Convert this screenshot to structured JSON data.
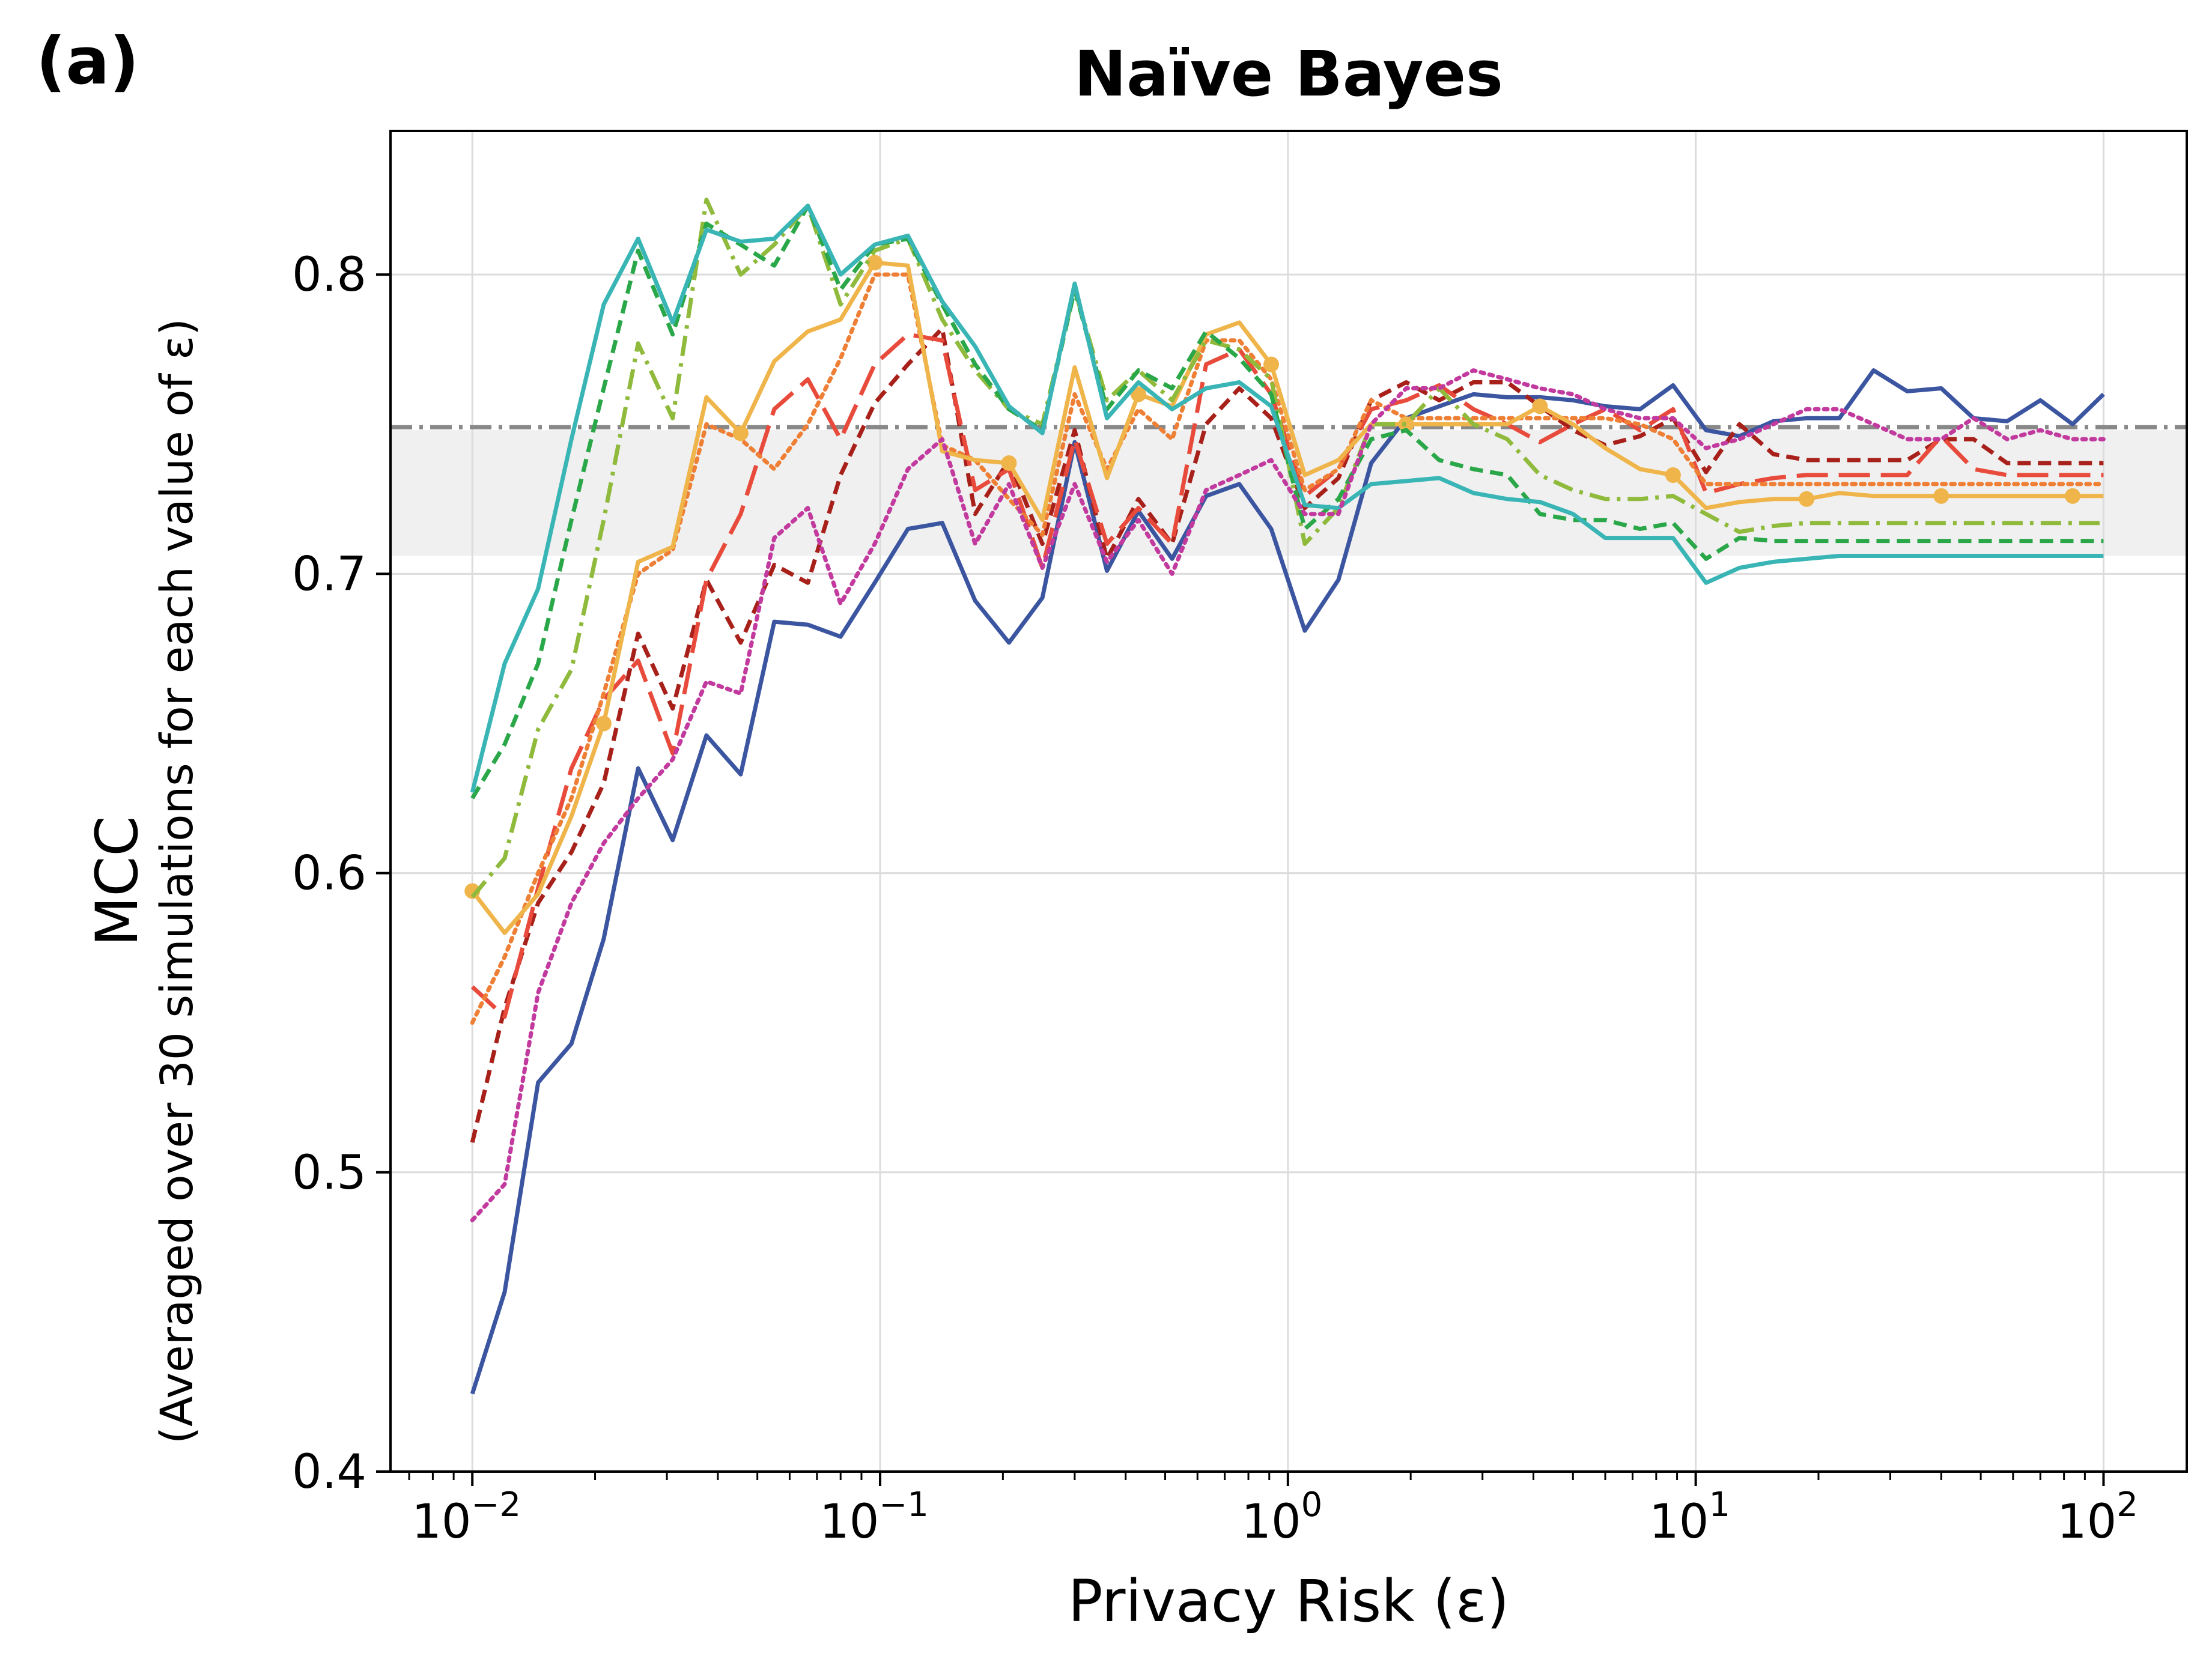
{
  "panel_label": "(a)",
  "chart_data": {
    "type": "line",
    "title": "Naïve Bayes",
    "xlabel": "Privacy Risk (ε)",
    "ylabel": "MCC",
    "ylabel_sub": "(Averaged over 30 simulations for each value of ε)",
    "xscale": "log",
    "xlim": [
      0.0063,
      160
    ],
    "ylim": [
      0.4,
      0.848
    ],
    "xticks": [
      {
        "value": 0.01,
        "base": "10",
        "exp": "−2"
      },
      {
        "value": 0.1,
        "base": "10",
        "exp": "−1"
      },
      {
        "value": 1,
        "base": "10",
        "exp": "0"
      },
      {
        "value": 10,
        "base": "10",
        "exp": "1"
      },
      {
        "value": 100,
        "base": "10",
        "exp": "2"
      }
    ],
    "yticks": [
      {
        "value": 0.4,
        "label": "0.4"
      },
      {
        "value": 0.5,
        "label": "0.5"
      },
      {
        "value": 0.6,
        "label": "0.6"
      },
      {
        "value": 0.7,
        "label": "0.7"
      },
      {
        "value": 0.8,
        "label": "0.8"
      }
    ],
    "grid": true,
    "reference_line": {
      "y": 0.749,
      "color": "#888888",
      "style": "dashdot"
    },
    "reference_band": {
      "y0": 0.706,
      "y1": 0.748,
      "color": "#f0f0f0"
    },
    "series": [
      {
        "color": "#3b55a0",
        "style": "solid",
        "x": [
          0.01,
          0.012,
          0.0145,
          0.0175,
          0.021,
          0.0255,
          0.031,
          0.0375,
          0.0455,
          0.055,
          0.0665,
          0.08,
          0.097,
          0.117,
          0.142,
          0.171,
          0.207,
          0.25,
          0.3,
          0.36,
          0.43,
          0.52,
          0.63,
          0.76,
          0.91,
          1.1,
          1.33,
          1.6,
          1.95,
          2.35,
          2.85,
          3.45,
          4.15,
          5.0,
          6.0,
          7.3,
          8.8,
          10.6,
          12.8,
          15.5,
          18.7,
          22.5,
          27.3,
          33,
          40,
          48,
          58,
          70,
          84,
          100
        ],
        "y": [
          0.426,
          0.46,
          0.53,
          0.543,
          0.578,
          0.635,
          0.611,
          0.646,
          0.633,
          0.684,
          0.683,
          0.679,
          0.697,
          0.715,
          0.717,
          0.691,
          0.677,
          0.692,
          0.744,
          0.701,
          0.721,
          0.705,
          0.726,
          0.73,
          0.715,
          0.681,
          0.698,
          0.737,
          0.752,
          0.756,
          0.76,
          0.759,
          0.759,
          0.758,
          0.756,
          0.755,
          0.763,
          0.748,
          0.746,
          0.751,
          0.752,
          0.752,
          0.768,
          0.761,
          0.762,
          0.752,
          0.751,
          0.758,
          0.75,
          0.76
        ]
      },
      {
        "color": "#a8201a",
        "style": "dashed",
        "x": [
          0.01,
          0.012,
          0.0145,
          0.0175,
          0.021,
          0.0255,
          0.031,
          0.0375,
          0.0455,
          0.055,
          0.0665,
          0.08,
          0.097,
          0.117,
          0.142,
          0.171,
          0.207,
          0.25,
          0.3,
          0.36,
          0.43,
          0.52,
          0.63,
          0.76,
          0.91,
          1.1,
          1.33,
          1.6,
          1.95,
          2.35,
          2.85,
          3.45,
          4.15,
          5.0,
          6.0,
          7.3,
          8.8,
          10.6,
          12.8,
          15.5,
          18.7,
          22.5,
          27.3,
          33,
          40,
          48,
          58,
          70,
          84,
          100
        ],
        "y": [
          0.51,
          0.555,
          0.59,
          0.607,
          0.63,
          0.68,
          0.655,
          0.698,
          0.677,
          0.703,
          0.697,
          0.733,
          0.757,
          0.77,
          0.782,
          0.72,
          0.738,
          0.71,
          0.748,
          0.705,
          0.725,
          0.71,
          0.75,
          0.762,
          0.752,
          0.722,
          0.732,
          0.758,
          0.764,
          0.758,
          0.764,
          0.764,
          0.756,
          0.748,
          0.743,
          0.746,
          0.752,
          0.734,
          0.75,
          0.74,
          0.738,
          0.738,
          0.738,
          0.738,
          0.745,
          0.745,
          0.737,
          0.737,
          0.737,
          0.737
        ]
      },
      {
        "color": "#e84b3c",
        "style": "longdash",
        "x": [
          0.01,
          0.012,
          0.0145,
          0.0175,
          0.021,
          0.0255,
          0.031,
          0.0375,
          0.0455,
          0.055,
          0.0665,
          0.08,
          0.097,
          0.117,
          0.142,
          0.171,
          0.207,
          0.25,
          0.3,
          0.36,
          0.43,
          0.52,
          0.63,
          0.76,
          0.91,
          1.1,
          1.33,
          1.6,
          1.95,
          2.35,
          2.85,
          3.45,
          4.15,
          5.0,
          6.0,
          7.3,
          8.8,
          10.6,
          12.8,
          15.5,
          18.7,
          22.5,
          27.3,
          33,
          40,
          48,
          58,
          70,
          84,
          100
        ],
        "y": [
          0.562,
          0.552,
          0.595,
          0.635,
          0.658,
          0.671,
          0.64,
          0.698,
          0.72,
          0.755,
          0.765,
          0.745,
          0.77,
          0.78,
          0.778,
          0.728,
          0.735,
          0.702,
          0.745,
          0.71,
          0.722,
          0.71,
          0.77,
          0.775,
          0.76,
          0.726,
          0.735,
          0.755,
          0.758,
          0.763,
          0.755,
          0.75,
          0.744,
          0.75,
          0.755,
          0.748,
          0.755,
          0.727,
          0.73,
          0.732,
          0.733,
          0.733,
          0.733,
          0.733,
          0.746,
          0.735,
          0.733,
          0.733,
          0.733,
          0.733
        ]
      },
      {
        "color": "#ee7f34",
        "style": "dotted",
        "x": [
          0.01,
          0.012,
          0.0145,
          0.0175,
          0.021,
          0.0255,
          0.031,
          0.0375,
          0.0455,
          0.055,
          0.0665,
          0.08,
          0.097,
          0.117,
          0.142,
          0.171,
          0.207,
          0.25,
          0.3,
          0.36,
          0.43,
          0.52,
          0.63,
          0.76,
          0.91,
          1.1,
          1.33,
          1.6,
          1.95,
          2.35,
          2.85,
          3.45,
          4.15,
          5.0,
          6.0,
          7.3,
          8.8,
          10.6,
          12.8,
          15.5,
          18.7,
          22.5,
          27.3,
          33,
          40,
          48,
          58,
          70,
          84,
          100
        ],
        "y": [
          0.55,
          0.572,
          0.6,
          0.625,
          0.66,
          0.7,
          0.708,
          0.75,
          0.745,
          0.735,
          0.75,
          0.772,
          0.8,
          0.8,
          0.743,
          0.738,
          0.725,
          0.713,
          0.76,
          0.735,
          0.755,
          0.745,
          0.778,
          0.778,
          0.765,
          0.728,
          0.735,
          0.758,
          0.752,
          0.752,
          0.752,
          0.752,
          0.752,
          0.752,
          0.752,
          0.75,
          0.745,
          0.73,
          0.73,
          0.73,
          0.73,
          0.73,
          0.73,
          0.73,
          0.73,
          0.73,
          0.73,
          0.73,
          0.73,
          0.73
        ]
      },
      {
        "color": "#efb54a",
        "style": "solid-marker",
        "markers_every": 4,
        "x": [
          0.01,
          0.012,
          0.0145,
          0.0175,
          0.021,
          0.0255,
          0.031,
          0.0375,
          0.0455,
          0.055,
          0.0665,
          0.08,
          0.097,
          0.117,
          0.142,
          0.171,
          0.207,
          0.25,
          0.3,
          0.36,
          0.43,
          0.52,
          0.63,
          0.76,
          0.91,
          1.1,
          1.33,
          1.6,
          1.95,
          2.35,
          2.85,
          3.45,
          4.15,
          5.0,
          6.0,
          7.3,
          8.8,
          10.6,
          12.8,
          15.5,
          18.7,
          22.5,
          27.3,
          33,
          40,
          48,
          58,
          70,
          84,
          100
        ],
        "y": [
          0.594,
          0.58,
          0.593,
          0.619,
          0.65,
          0.704,
          0.709,
          0.759,
          0.747,
          0.771,
          0.781,
          0.785,
          0.804,
          0.803,
          0.741,
          0.738,
          0.737,
          0.718,
          0.769,
          0.732,
          0.76,
          0.756,
          0.78,
          0.784,
          0.77,
          0.733,
          0.738,
          0.75,
          0.75,
          0.75,
          0.75,
          0.75,
          0.756,
          0.75,
          0.742,
          0.735,
          0.733,
          0.722,
          0.724,
          0.725,
          0.725,
          0.727,
          0.726,
          0.726,
          0.726,
          0.726,
          0.726,
          0.726,
          0.726,
          0.726
        ]
      },
      {
        "color": "#8fba3c",
        "style": "dashdot",
        "x": [
          0.01,
          0.012,
          0.0145,
          0.0175,
          0.021,
          0.0255,
          0.031,
          0.0375,
          0.0455,
          0.055,
          0.0665,
          0.08,
          0.097,
          0.117,
          0.142,
          0.171,
          0.207,
          0.25,
          0.3,
          0.36,
          0.43,
          0.52,
          0.63,
          0.76,
          0.91,
          1.1,
          1.33,
          1.6,
          1.95,
          2.35,
          2.85,
          3.45,
          4.15,
          5.0,
          6.0,
          7.3,
          8.8,
          10.6,
          12.8,
          15.5,
          18.7,
          22.5,
          27.3,
          33,
          40,
          48,
          58,
          70,
          84,
          100
        ],
        "y": [
          0.592,
          0.605,
          0.648,
          0.668,
          0.718,
          0.777,
          0.752,
          0.825,
          0.8,
          0.81,
          0.823,
          0.79,
          0.808,
          0.812,
          0.785,
          0.768,
          0.755,
          0.75,
          0.795,
          0.758,
          0.768,
          0.758,
          0.778,
          0.775,
          0.765,
          0.71,
          0.722,
          0.75,
          0.75,
          0.762,
          0.75,
          0.745,
          0.733,
          0.728,
          0.725,
          0.725,
          0.726,
          0.72,
          0.714,
          0.716,
          0.717,
          0.717,
          0.717,
          0.717,
          0.717,
          0.717,
          0.717,
          0.717,
          0.717,
          0.717
        ]
      },
      {
        "color": "#2aa748",
        "style": "dashed",
        "x": [
          0.01,
          0.012,
          0.0145,
          0.0175,
          0.021,
          0.0255,
          0.031,
          0.0375,
          0.0455,
          0.055,
          0.0665,
          0.08,
          0.097,
          0.117,
          0.142,
          0.171,
          0.207,
          0.25,
          0.3,
          0.36,
          0.43,
          0.52,
          0.63,
          0.76,
          0.91,
          1.1,
          1.33,
          1.6,
          1.95,
          2.35,
          2.85,
          3.45,
          4.15,
          5.0,
          6.0,
          7.3,
          8.8,
          10.6,
          12.8,
          15.5,
          18.7,
          22.5,
          27.3,
          33,
          40,
          48,
          58,
          70,
          84,
          100
        ],
        "y": [
          0.625,
          0.643,
          0.67,
          0.718,
          0.762,
          0.808,
          0.78,
          0.817,
          0.81,
          0.803,
          0.823,
          0.795,
          0.81,
          0.812,
          0.79,
          0.77,
          0.755,
          0.748,
          0.795,
          0.755,
          0.768,
          0.762,
          0.781,
          0.772,
          0.76,
          0.715,
          0.725,
          0.745,
          0.748,
          0.738,
          0.735,
          0.733,
          0.72,
          0.718,
          0.718,
          0.715,
          0.717,
          0.705,
          0.712,
          0.711,
          0.711,
          0.711,
          0.711,
          0.711,
          0.711,
          0.711,
          0.711,
          0.711,
          0.711,
          0.711
        ]
      },
      {
        "color": "#3ab5b5",
        "style": "solid",
        "x": [
          0.01,
          0.012,
          0.0145,
          0.0175,
          0.021,
          0.0255,
          0.031,
          0.0375,
          0.0455,
          0.055,
          0.0665,
          0.08,
          0.097,
          0.117,
          0.142,
          0.171,
          0.207,
          0.25,
          0.3,
          0.36,
          0.43,
          0.52,
          0.63,
          0.76,
          0.91,
          1.1,
          1.33,
          1.6,
          1.95,
          2.35,
          2.85,
          3.45,
          4.15,
          5.0,
          6.0,
          7.3,
          8.8,
          10.6,
          12.8,
          15.5,
          18.7,
          22.5,
          27.3,
          33,
          40,
          48,
          58,
          70,
          84,
          100
        ],
        "y": [
          0.627,
          0.67,
          0.695,
          0.745,
          0.79,
          0.812,
          0.784,
          0.815,
          0.811,
          0.812,
          0.823,
          0.8,
          0.81,
          0.813,
          0.791,
          0.776,
          0.756,
          0.747,
          0.797,
          0.752,
          0.764,
          0.755,
          0.762,
          0.764,
          0.756,
          0.723,
          0.722,
          0.73,
          0.731,
          0.732,
          0.727,
          0.725,
          0.724,
          0.72,
          0.712,
          0.712,
          0.712,
          0.697,
          0.702,
          0.704,
          0.705,
          0.706,
          0.706,
          0.706,
          0.706,
          0.706,
          0.706,
          0.706,
          0.706,
          0.706
        ]
      },
      {
        "color": "#c23a9e",
        "style": "dotted",
        "x": [
          0.01,
          0.012,
          0.0145,
          0.0175,
          0.021,
          0.0255,
          0.031,
          0.0375,
          0.0455,
          0.055,
          0.0665,
          0.08,
          0.097,
          0.117,
          0.142,
          0.171,
          0.207,
          0.25,
          0.3,
          0.36,
          0.43,
          0.52,
          0.63,
          0.76,
          0.91,
          1.1,
          1.33,
          1.6,
          1.95,
          2.35,
          2.85,
          3.45,
          4.15,
          5.0,
          6.0,
          7.3,
          8.8,
          10.6,
          12.8,
          15.5,
          18.7,
          22.5,
          27.3,
          33,
          40,
          48,
          58,
          70,
          84,
          100
        ],
        "y": [
          0.484,
          0.496,
          0.56,
          0.59,
          0.61,
          0.625,
          0.638,
          0.664,
          0.66,
          0.712,
          0.722,
          0.69,
          0.71,
          0.735,
          0.745,
          0.71,
          0.73,
          0.702,
          0.73,
          0.704,
          0.718,
          0.7,
          0.728,
          0.733,
          0.738,
          0.72,
          0.72,
          0.75,
          0.762,
          0.762,
          0.768,
          0.765,
          0.762,
          0.76,
          0.755,
          0.752,
          0.752,
          0.742,
          0.745,
          0.75,
          0.755,
          0.755,
          0.75,
          0.745,
          0.745,
          0.752,
          0.745,
          0.748,
          0.745,
          0.745
        ]
      }
    ]
  }
}
